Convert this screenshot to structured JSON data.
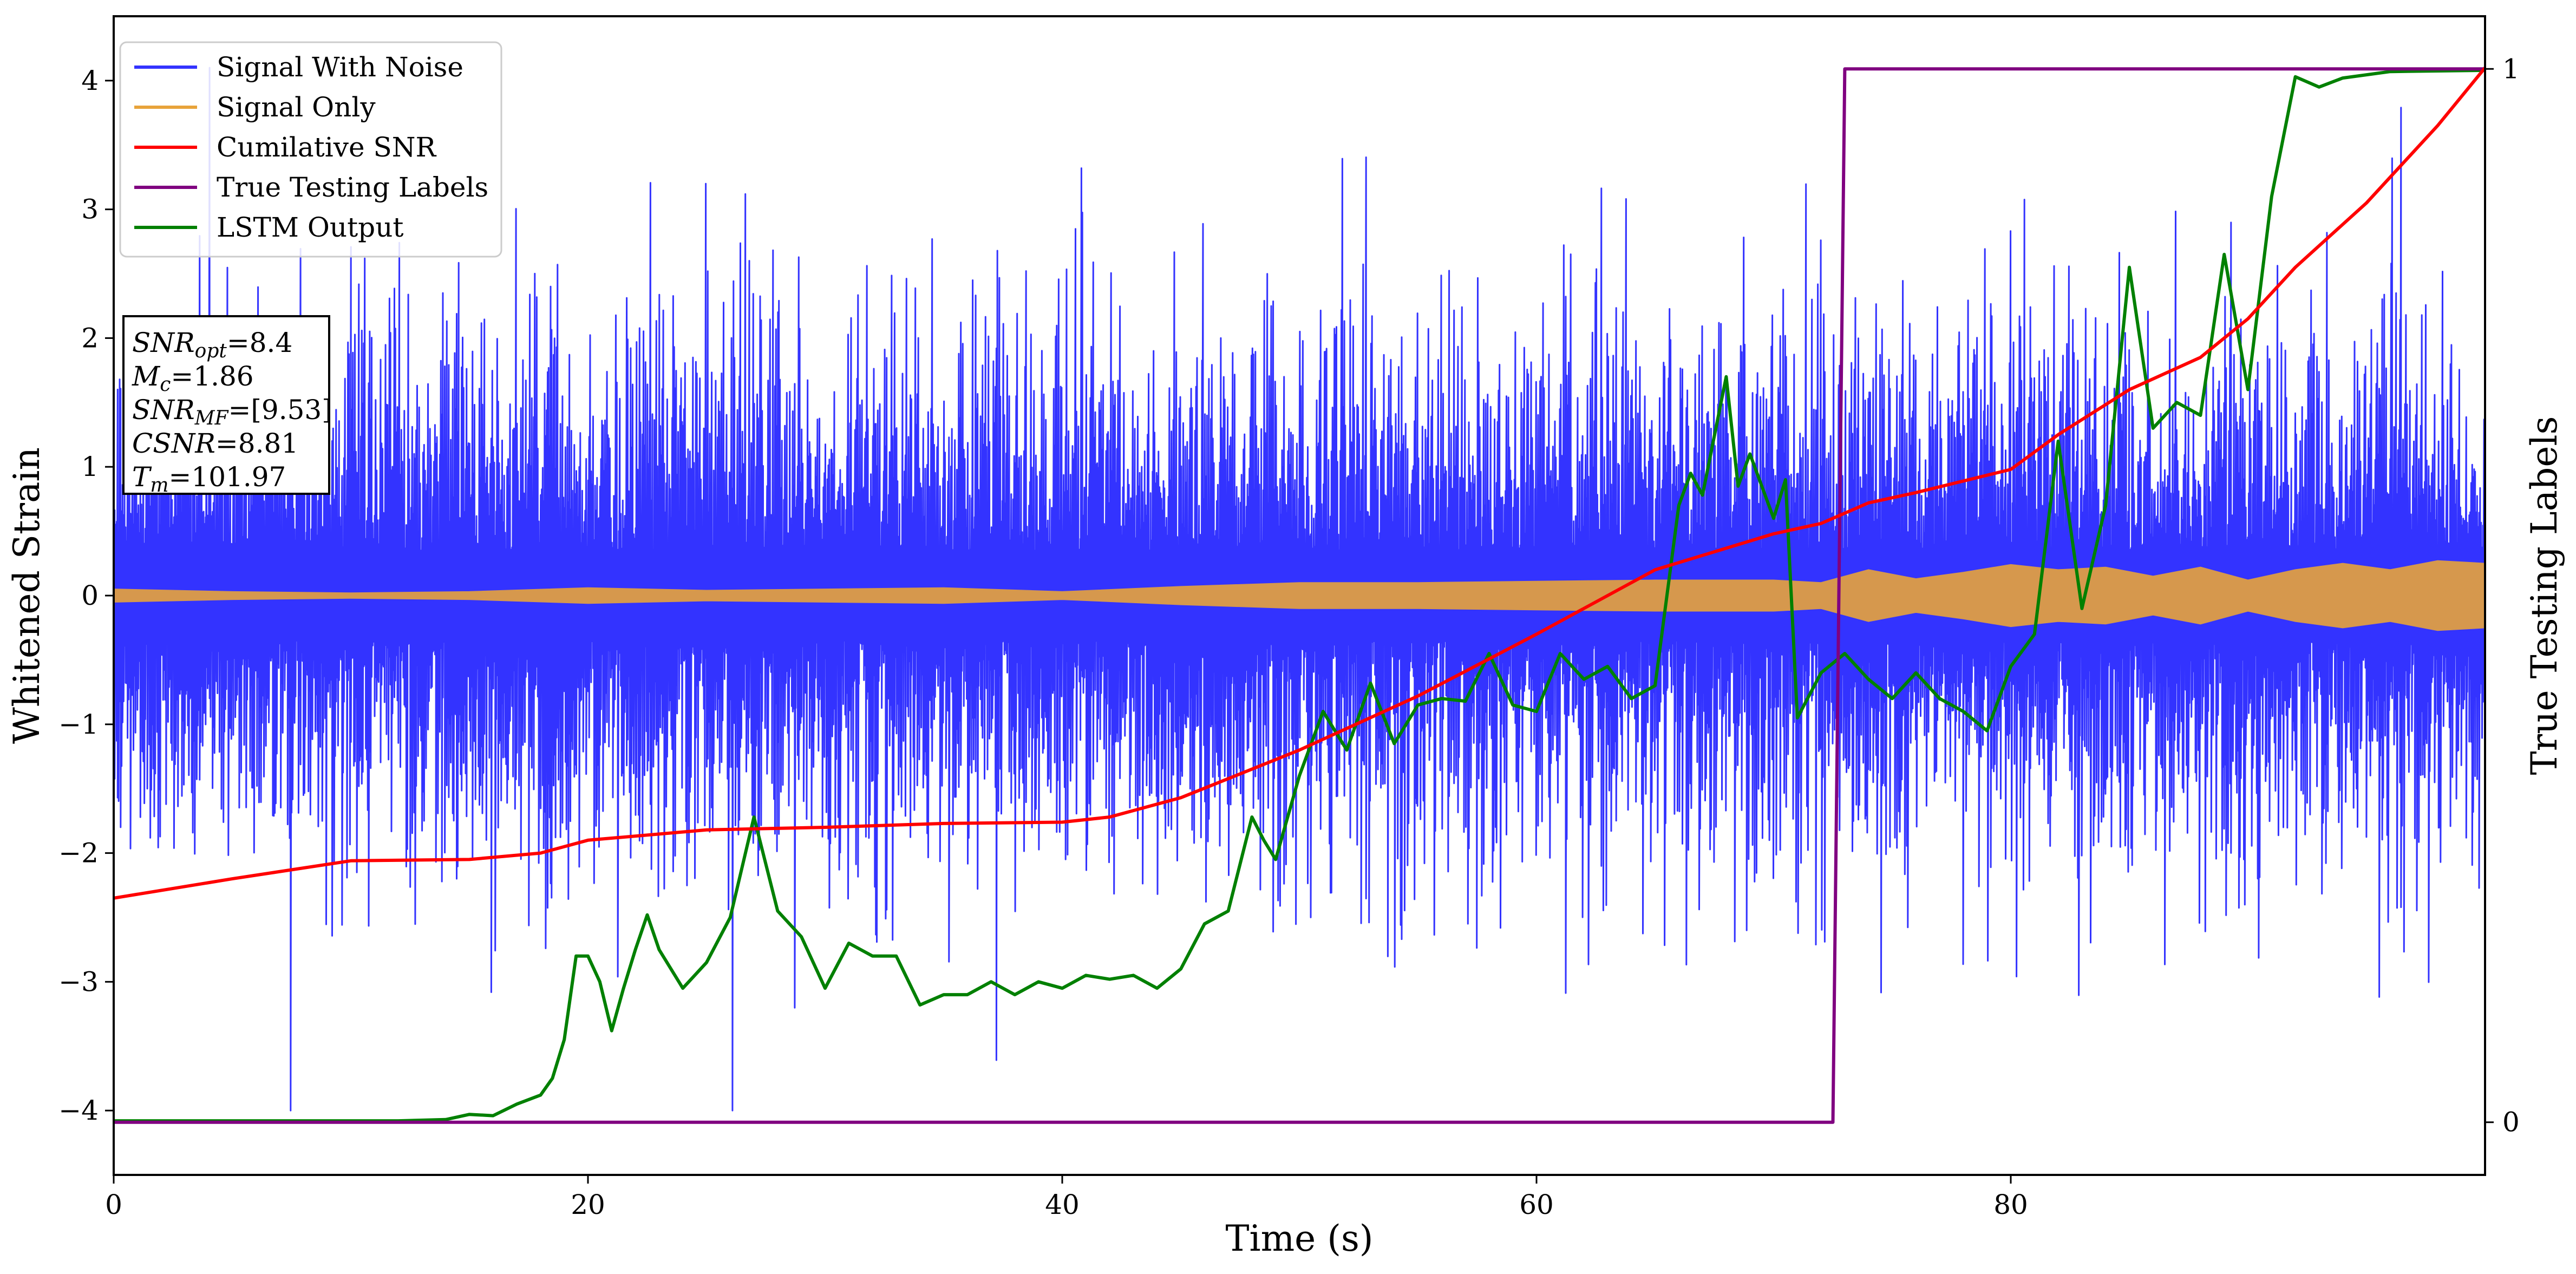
{
  "chart_data": {
    "type": "line",
    "xlabel": "Time (s)",
    "ylabel": "Whitened Strain",
    "y2label": "True Testing Labels",
    "xlim": [
      0,
      100
    ],
    "ylim": [
      -4.5,
      4.5
    ],
    "y2lim": [
      -0.05,
      1.05
    ],
    "xticks": [
      "0",
      "20",
      "40",
      "60",
      "80"
    ],
    "yticks": [
      "−4",
      "−3",
      "−2",
      "−1",
      "0",
      "1",
      "2",
      "3",
      "4"
    ],
    "y2ticks": [
      "0",
      "1"
    ],
    "legend_position": "top-left",
    "colors": {
      "signal_noise": "#3333ff",
      "signal_only": "#e8a33a",
      "cum_snr": "#ff0000",
      "true_labels": "#800080",
      "lstm": "#008000"
    },
    "series": [
      {
        "name": "Signal With Noise",
        "kind": "noise-band",
        "approx_std": 0.95,
        "approx_peak_range": [
          -4.0,
          4.1
        ]
      },
      {
        "name": "Signal Only",
        "kind": "envelope",
        "x": [
          0,
          5,
          10,
          15,
          20,
          25,
          30,
          35,
          40,
          45,
          50,
          55,
          60,
          65,
          70,
          72,
          74,
          76,
          78,
          80,
          82,
          84,
          86,
          88,
          90,
          92,
          94,
          96,
          98,
          100
        ],
        "amplitude": [
          0.05,
          0.03,
          0.02,
          0.03,
          0.06,
          0.04,
          0.05,
          0.06,
          0.03,
          0.07,
          0.1,
          0.1,
          0.11,
          0.12,
          0.12,
          0.1,
          0.2,
          0.13,
          0.18,
          0.24,
          0.2,
          0.22,
          0.15,
          0.22,
          0.12,
          0.2,
          0.25,
          0.2,
          0.27,
          0.25
        ]
      },
      {
        "name": "Cumilative SNR",
        "axis": "left",
        "x": [
          0,
          5,
          10,
          15,
          18,
          20,
          25,
          30,
          35,
          40,
          42,
          45,
          50,
          55,
          60,
          65,
          70,
          72,
          74,
          76,
          80,
          82,
          85,
          88,
          90,
          92,
          95,
          98,
          100
        ],
        "y": [
          -2.35,
          -2.2,
          -2.06,
          -2.05,
          -2.0,
          -1.9,
          -1.82,
          -1.8,
          -1.77,
          -1.76,
          -1.72,
          -1.57,
          -1.2,
          -0.78,
          -0.3,
          0.2,
          0.48,
          0.56,
          0.72,
          0.8,
          0.98,
          1.25,
          1.6,
          1.85,
          2.15,
          2.55,
          3.05,
          3.65,
          4.1
        ]
      },
      {
        "name": "True Testing Labels",
        "axis": "right",
        "x": [
          0,
          72.5,
          73.0,
          100
        ],
        "y": [
          0,
          0,
          1,
          1
        ]
      },
      {
        "name": "LSTM Output",
        "axis": "left",
        "x": [
          0,
          12,
          14,
          15,
          16,
          17,
          18,
          18.5,
          19,
          19.5,
          20,
          20.5,
          21,
          21.5,
          22,
          22.5,
          23,
          24,
          25,
          26,
          27,
          28,
          29,
          30,
          31,
          32,
          33,
          34,
          35,
          36,
          37,
          38,
          39,
          40,
          41,
          42,
          43,
          44,
          45,
          46,
          47,
          48,
          48.5,
          49,
          50,
          51,
          52,
          53,
          54,
          55,
          56,
          57,
          58,
          59,
          60,
          61,
          62,
          63,
          64,
          65,
          66,
          66.5,
          67,
          68,
          68.5,
          69,
          70,
          70.5,
          71,
          72,
          73,
          74,
          75,
          76,
          77,
          78,
          79,
          80,
          81,
          82,
          83,
          84,
          85,
          86,
          87,
          88,
          89,
          90,
          91,
          92,
          93,
          94,
          96,
          100
        ],
        "y": [
          -4.08,
          -4.08,
          -4.07,
          -4.03,
          -4.04,
          -3.95,
          -3.88,
          -3.75,
          -3.45,
          -2.8,
          -2.8,
          -3.0,
          -3.38,
          -3.05,
          -2.75,
          -2.48,
          -2.75,
          -3.05,
          -2.85,
          -2.5,
          -1.72,
          -2.45,
          -2.65,
          -3.05,
          -2.7,
          -2.8,
          -2.8,
          -3.18,
          -3.1,
          -3.1,
          -3.0,
          -3.1,
          -3.0,
          -3.05,
          -2.95,
          -2.98,
          -2.95,
          -3.05,
          -2.9,
          -2.55,
          -2.45,
          -1.72,
          -1.9,
          -2.05,
          -1.4,
          -0.9,
          -1.2,
          -0.68,
          -1.15,
          -0.85,
          -0.8,
          -0.82,
          -0.45,
          -0.85,
          -0.9,
          -0.45,
          -0.65,
          -0.55,
          -0.8,
          -0.7,
          0.7,
          0.95,
          0.78,
          1.7,
          0.85,
          1.1,
          0.6,
          0.9,
          -0.95,
          -0.6,
          -0.45,
          -0.65,
          -0.8,
          -0.6,
          -0.8,
          -0.9,
          -1.05,
          -0.55,
          -0.3,
          1.2,
          -0.1,
          0.7,
          2.55,
          1.3,
          1.5,
          1.4,
          2.65,
          1.6,
          3.1,
          4.03,
          3.95,
          4.02,
          4.07,
          4.08
        ]
      }
    ],
    "annotation_lines": [
      {
        "prefix": "SNR",
        "sub": "opt",
        "suffix": "=8.4"
      },
      {
        "prefix": "M",
        "sub": "c",
        "suffix": "=1.86"
      },
      {
        "prefix": "SNR",
        "sub": "MF",
        "suffix": "=[9.53]"
      },
      {
        "prefix": "CSNR",
        "sub": "",
        "suffix": "=8.81"
      },
      {
        "prefix": "T",
        "sub": "m",
        "suffix": "=101.97"
      }
    ]
  }
}
